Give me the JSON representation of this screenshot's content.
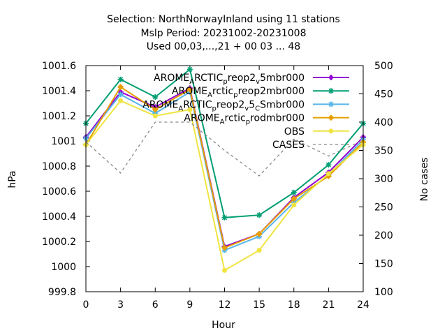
{
  "chart_data": {
    "type": "line",
    "title_lines": [
      "Selection: NorthNorwayInland using    11 stations",
      "Mslp   Period: 20231002-20231008",
      "Used  00,03,...,21  + 00 03 ... 48"
    ],
    "xlabel": "Hour",
    "ylabel": "hPa",
    "y2label": "No cases",
    "x": [
      0,
      3,
      6,
      9,
      12,
      15,
      18,
      21,
      24
    ],
    "xlim": [
      0,
      24
    ],
    "ylim": [
      999.8,
      1001.6
    ],
    "y2lim": [
      100,
      500
    ],
    "x_ticks": [
      "0",
      "3",
      "6",
      "9",
      "12",
      "15",
      "18",
      "21",
      "24"
    ],
    "y_ticks": [
      {
        "v": 999.8,
        "label": "999.8"
      },
      {
        "v": 1000.0,
        "label": "1000"
      },
      {
        "v": 1000.2,
        "label": "1000.2"
      },
      {
        "v": 1000.4,
        "label": "1000.4"
      },
      {
        "v": 1000.6,
        "label": "1000.6"
      },
      {
        "v": 1000.8,
        "label": "1000.8"
      },
      {
        "v": 1001.0,
        "label": "1001"
      },
      {
        "v": 1001.2,
        "label": "1001.2"
      },
      {
        "v": 1001.4,
        "label": "1001.4"
      },
      {
        "v": 1001.6,
        "label": "1001.6"
      }
    ],
    "y2_ticks": [
      {
        "v": 100,
        "label": "100"
      },
      {
        "v": 150,
        "label": "150"
      },
      {
        "v": 200,
        "label": "200"
      },
      {
        "v": 250,
        "label": "250"
      },
      {
        "v": 300,
        "label": "300"
      },
      {
        "v": 350,
        "label": "350"
      },
      {
        "v": 400,
        "label": "400"
      },
      {
        "v": 450,
        "label": "450"
      },
      {
        "v": 500,
        "label": "500"
      }
    ],
    "grid": false,
    "legend_position": "top-right",
    "series": [
      {
        "name": "AROME_ARCTIC_preop2_v5mbr000",
        "legend_parts": [
          [
            "AROME",
            ""
          ],
          [
            "A",
            "sub"
          ],
          [
            "RCTIC",
            ""
          ],
          [
            "p",
            "sub"
          ],
          [
            "reop2",
            ""
          ],
          [
            "v",
            "sub"
          ],
          [
            "5mbr000",
            ""
          ]
        ],
        "color": "#9400d3",
        "marker": "plus",
        "axis": "y",
        "dash": false,
        "values": [
          1001.03,
          1001.39,
          1001.27,
          1001.42,
          1000.16,
          1000.26,
          1000.55,
          1000.75,
          1001.03
        ]
      },
      {
        "name": "AROME_Arctic_preop2mbr000",
        "legend_parts": [
          [
            "AROME",
            ""
          ],
          [
            "A",
            "sub"
          ],
          [
            "rctic",
            ""
          ],
          [
            "p",
            "sub"
          ],
          [
            "reop2mbr000",
            ""
          ]
        ],
        "color": "#009e73",
        "marker": "star",
        "axis": "y",
        "dash": false,
        "values": [
          1001.14,
          1001.49,
          1001.35,
          1001.57,
          1000.39,
          1000.41,
          1000.59,
          1000.81,
          1001.14
        ]
      },
      {
        "name": "AROME_ARCTIC_preop2_v5_CSmbr000",
        "legend_parts": [
          [
            "AROME",
            ""
          ],
          [
            "A",
            "sub"
          ],
          [
            "RCTIC",
            ""
          ],
          [
            "p",
            "sub"
          ],
          [
            "reop2",
            ""
          ],
          [
            "v",
            "sub"
          ],
          [
            "5",
            ""
          ],
          [
            "C",
            "sub"
          ],
          [
            "Smbr000",
            ""
          ]
        ],
        "color": "#56b4e9",
        "marker": "star",
        "axis": "y",
        "dash": false,
        "values": [
          1001.02,
          1001.37,
          1001.22,
          1001.39,
          1000.13,
          1000.24,
          1000.51,
          1000.73,
          1001.01
        ]
      },
      {
        "name": "AROME_Arctic_prodmbr000",
        "legend_parts": [
          [
            "AROME",
            ""
          ],
          [
            "A",
            "sub"
          ],
          [
            "rctic",
            ""
          ],
          [
            "p",
            "sub"
          ],
          [
            "rodmbr000",
            ""
          ]
        ],
        "color": "#e69f00",
        "marker": "diamond",
        "axis": "y",
        "dash": false,
        "values": [
          1000.97,
          1001.43,
          1001.25,
          1001.41,
          1000.15,
          1000.26,
          1000.54,
          1000.72,
          1000.99
        ]
      },
      {
        "name": "OBS",
        "legend_parts": [
          [
            "OBS",
            ""
          ]
        ],
        "color": "#f0e442",
        "marker": "circle",
        "axis": "y",
        "dash": false,
        "values": [
          1000.97,
          1001.32,
          1001.2,
          1001.25,
          999.97,
          1000.13,
          1000.49,
          1000.74,
          1000.97
        ]
      },
      {
        "name": "CASES",
        "legend_parts": [
          [
            "CASES",
            ""
          ]
        ],
        "color": "#888888",
        "marker": "none",
        "axis": "y2",
        "dash": true,
        "values": [
          365,
          310,
          400,
          400,
          350,
          305,
          370,
          340,
          368
        ]
      }
    ]
  }
}
